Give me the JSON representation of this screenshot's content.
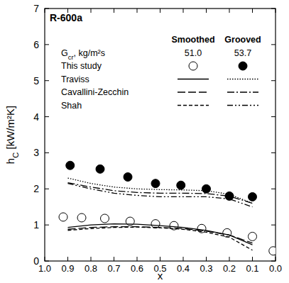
{
  "chart_data": {
    "type": "scatter",
    "title": "R-600a",
    "x_label": "x",
    "y_label": {
      "text": "h",
      "sub": "C",
      "rest": " [kW/m²K]"
    },
    "xlim": [
      1,
      0
    ],
    "ylim": [
      0,
      7
    ],
    "xticks": [
      {
        "value": 1,
        "label": "1.0"
      },
      0.9,
      0.8,
      0.7,
      0.6,
      0.5,
      0.4,
      0.3,
      0.2,
      0.1,
      {
        "value": 0,
        "label": "0.0"
      }
    ],
    "yticks": [
      0,
      1,
      2,
      3,
      4,
      5,
      6,
      7
    ],
    "grid": false,
    "legend": "top-right",
    "legend_table": {
      "columns": [
        "Smoothed",
        "Grooved"
      ],
      "row_label": {
        "text": "G",
        "sub": "cr",
        "rest": ", kg/m²s"
      },
      "row_values": [
        {
          "value": 51,
          "label": "51.0"
        },
        {
          "value": 53.7,
          "label": "53.7"
        }
      ]
    },
    "series": [
      {
        "name": "This study",
        "group": "Smoothed",
        "type": "scatter",
        "marker": "open-circle",
        "color": "#000000",
        "x": [
          0.92,
          0.84,
          0.74,
          0.63,
          0.52,
          0.44,
          0.32,
          0.21,
          0.1,
          0.01
        ],
        "values": [
          1.22,
          1.2,
          1.18,
          1.1,
          1.03,
          0.98,
          0.9,
          0.78,
          0.68,
          0.28
        ]
      },
      {
        "name": "This study",
        "group": "Grooved",
        "type": "scatter",
        "marker": "filled-circle",
        "color": "#000000",
        "x": [
          0.89,
          0.76,
          0.64,
          0.52,
          0.41,
          0.3,
          0.2,
          0.1
        ],
        "values": [
          2.65,
          2.55,
          2.33,
          2.15,
          2.1,
          2.0,
          1.8,
          1.78
        ]
      },
      {
        "name": "Traviss",
        "group": "Smoothed",
        "type": "line",
        "line_style": "solid",
        "color": "#000000",
        "x": [
          0.9,
          0.8,
          0.7,
          0.6,
          0.5,
          0.4,
          0.3,
          0.2,
          0.1
        ],
        "values": [
          0.93,
          1.0,
          1.03,
          1.02,
          0.98,
          0.93,
          0.85,
          0.72,
          0.45
        ]
      },
      {
        "name": "Traviss",
        "group": "Grooved",
        "type": "line",
        "line_style": "dotted",
        "color": "#000000",
        "x": [
          0.9,
          0.8,
          0.7,
          0.6,
          0.5,
          0.4,
          0.3,
          0.2,
          0.1
        ],
        "values": [
          2.3,
          2.15,
          2.05,
          2.0,
          1.98,
          1.97,
          1.95,
          1.85,
          1.6
        ]
      },
      {
        "name": "Cavallini-Zecchin",
        "group": "Smoothed",
        "type": "line",
        "line_style": "longdash",
        "color": "#000000",
        "x": [
          0.9,
          0.8,
          0.7,
          0.6,
          0.5,
          0.4,
          0.3,
          0.2,
          0.1
        ],
        "values": [
          0.88,
          0.93,
          0.95,
          0.95,
          0.93,
          0.9,
          0.83,
          0.72,
          0.5
        ]
      },
      {
        "name": "Cavallini-Zecchin",
        "group": "Grooved",
        "type": "line",
        "line_style": "dashdot",
        "color": "#000000",
        "x": [
          0.9,
          0.8,
          0.7,
          0.6,
          0.5,
          0.4,
          0.3,
          0.2,
          0.1
        ],
        "values": [
          2.17,
          2.05,
          1.95,
          1.9,
          1.88,
          1.88,
          1.87,
          1.8,
          1.6
        ]
      },
      {
        "name": "Shah",
        "group": "Smoothed",
        "type": "line",
        "line_style": "dashed",
        "color": "#000000",
        "x": [
          0.9,
          0.8,
          0.7,
          0.6,
          0.5,
          0.4,
          0.3,
          0.2,
          0.1
        ],
        "values": [
          0.85,
          0.9,
          0.93,
          0.94,
          0.92,
          0.88,
          0.8,
          0.66,
          0.3
        ]
      },
      {
        "name": "Shah",
        "group": "Grooved",
        "type": "line",
        "line_style": "dashdotdot",
        "color": "#000000",
        "x": [
          0.9,
          0.8,
          0.7,
          0.6,
          0.5,
          0.4,
          0.3,
          0.2,
          0.1
        ],
        "values": [
          2.15,
          2.0,
          1.88,
          1.82,
          1.78,
          1.78,
          1.78,
          1.72,
          1.5
        ]
      }
    ]
  }
}
